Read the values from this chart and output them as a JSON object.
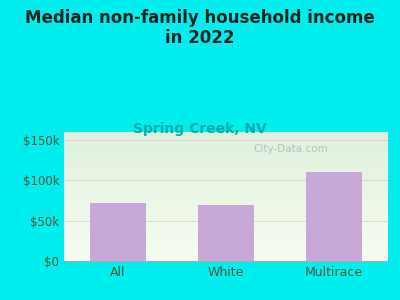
{
  "title_line1": "Median non-family household income",
  "title_line2": "in 2022",
  "subtitle": "Spring Creek, NV",
  "categories": [
    "All",
    "White",
    "Multirace"
  ],
  "values": [
    72000,
    70000,
    110000
  ],
  "bar_color": "#C8A8D8",
  "title_fontsize": 12,
  "subtitle_fontsize": 10,
  "subtitle_color": "#00AAAA",
  "title_color": "#222222",
  "tick_label_color": "#555533",
  "background_outer": "#00EEEE",
  "plot_bg_top": "#E0F0DC",
  "plot_bg_bottom": "#F5FCF0",
  "ylim": [
    0,
    160000
  ],
  "yticks": [
    0,
    50000,
    100000,
    150000
  ],
  "ytick_labels": [
    "$0",
    "$50k",
    "$100k",
    "$150k"
  ],
  "grid_color": "#DDAAAA",
  "watermark": "City-Data.com",
  "watermark_color": "#B0B8C0",
  "xlabel_fontsize": 9,
  "tick_fontsize": 8.5
}
